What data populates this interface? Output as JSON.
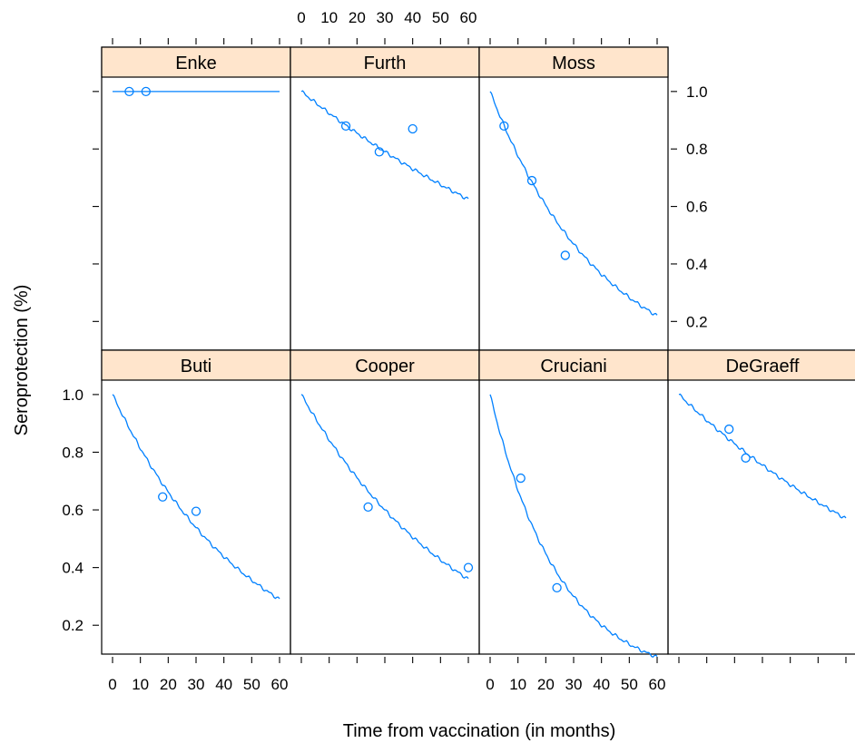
{
  "chart_data": {
    "type": "scatter",
    "ylabel": "Seroprotection (%)",
    "xlabel": "Time from vaccination (in months)",
    "xlim": [
      0,
      60
    ],
    "ylim": [
      0.1,
      1.05
    ],
    "x_ticks": [
      0,
      10,
      20,
      30,
      40,
      50,
      60
    ],
    "y_ticks": [
      0.2,
      0.4,
      0.6,
      0.8,
      1.0
    ],
    "x_tick_labels": [
      "0",
      "10",
      "20",
      "30",
      "40",
      "50",
      "60"
    ],
    "y_tick_labels": [
      "0.2",
      "0.4",
      "0.6",
      "0.8",
      "1.0"
    ],
    "marker": "open-circle",
    "panels": [
      {
        "name": "Enke",
        "points": [
          {
            "x": 6,
            "y": 1.0
          },
          {
            "x": 12,
            "y": 1.0
          }
        ],
        "curve": {
          "y0": 1.0,
          "y60": 1.0
        }
      },
      {
        "name": "Furth",
        "points": [
          {
            "x": 16,
            "y": 0.88
          },
          {
            "x": 28,
            "y": 0.79
          },
          {
            "x": 40,
            "y": 0.87
          }
        ],
        "curve": {
          "y0": 1.0,
          "y60": 0.625
        }
      },
      {
        "name": "Moss",
        "points": [
          {
            "x": 5,
            "y": 0.88
          },
          {
            "x": 15,
            "y": 0.69
          },
          {
            "x": 27,
            "y": 0.43
          }
        ],
        "curve": {
          "y0": 1.0,
          "y60": 0.22
        }
      },
      {
        "name": "Buti",
        "points": [
          {
            "x": 18,
            "y": 0.645
          },
          {
            "x": 30,
            "y": 0.595
          }
        ],
        "curve": {
          "y0": 1.0,
          "y60": 0.29
        }
      },
      {
        "name": "Cooper",
        "points": [
          {
            "x": 24,
            "y": 0.61
          },
          {
            "x": 60,
            "y": 0.4
          }
        ],
        "curve": {
          "y0": 1.0,
          "y60": 0.36
        }
      },
      {
        "name": "Cruciani",
        "points": [
          {
            "x": 11,
            "y": 0.71
          },
          {
            "x": 24,
            "y": 0.33
          }
        ],
        "curve": {
          "y0": 1.0,
          "y60": 0.09
        }
      },
      {
        "name": "DeGraeff",
        "points": [
          {
            "x": 18,
            "y": 0.88
          },
          {
            "x": 24,
            "y": 0.78
          }
        ],
        "curve": {
          "y0": 1.0,
          "y60": 0.57
        }
      }
    ],
    "colors": {
      "series": "#0080ff",
      "strip": "#ffe5cc",
      "frame": "#000000",
      "text": "#000000"
    }
  }
}
